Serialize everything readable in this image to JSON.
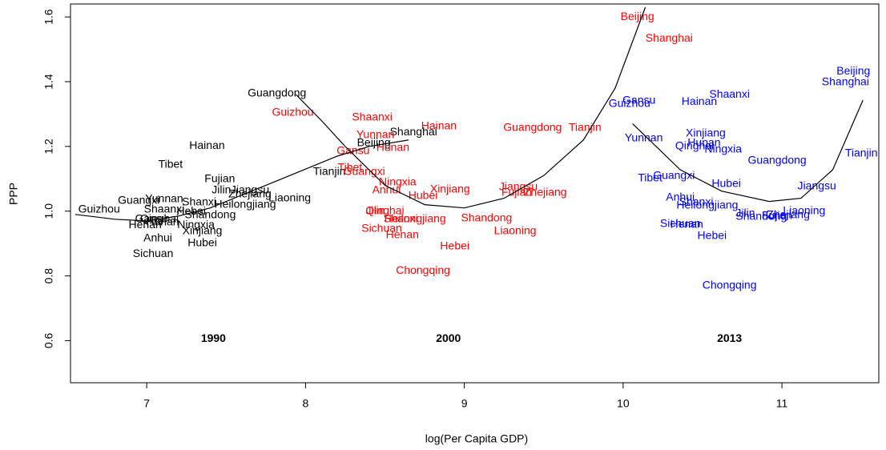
{
  "chart_data": {
    "type": "scatter",
    "xlabel": "log(Per Capita GDP)",
    "ylabel": "PPP",
    "xlim": [
      6.52,
      11.61
    ],
    "ylim": [
      0.47,
      1.64
    ],
    "xticks": [
      7,
      8,
      9,
      10,
      11
    ],
    "yticks": [
      0.6,
      0.8,
      {
        "value": 1.0,
        "label": "1.0"
      },
      1.2,
      1.4,
      1.6
    ],
    "series": [
      {
        "name": "1990",
        "color": "#000000",
        "labels": [
          "Guangdong",
          "Hainan",
          "Tibet",
          "Fujian",
          "Jiangsu",
          "Jilin",
          "Zhejiang",
          "Liaoning",
          "Heilongjiang",
          "Yunnan",
          "Guangxi",
          "Shanxi",
          "Shaanxi",
          "Hebei",
          "Shandong",
          "Guizhou",
          "Gansu",
          "Qinghai",
          "Henan",
          "Hunan",
          "Ningxia",
          "Xinjiang",
          "Anhui",
          "Sichuan",
          "Hubei",
          "Tianjin",
          "Beijing",
          "Shanghai"
        ],
        "x": [
          7.82,
          7.38,
          7.15,
          7.46,
          7.65,
          7.47,
          7.65,
          7.9,
          7.62,
          7.11,
          6.95,
          7.33,
          7.11,
          7.28,
          7.4,
          6.7,
          7.03,
          7.08,
          6.99,
          7.1,
          7.31,
          7.35,
          7.07,
          7.04,
          7.35,
          8.15,
          8.43,
          8.68
        ],
        "values": [
          1.363,
          1.202,
          1.143,
          1.099,
          1.064,
          1.064,
          1.052,
          1.04,
          1.02,
          1.037,
          1.032,
          1.027,
          1.005,
          0.998,
          0.988,
          1.005,
          0.975,
          0.975,
          0.956,
          0.965,
          0.956,
          0.938,
          0.916,
          0.867,
          0.901,
          1.121,
          1.21,
          1.244
        ]
      },
      {
        "name": "2000",
        "color": "#ff0000",
        "labels": [
          "Beijing",
          "Shanghai",
          "Guizhou",
          "Shaanxi",
          "Hainan",
          "Yunnan",
          "Hunan",
          "Gansu",
          "Tibet",
          "Guangxi",
          "Ningxia",
          "Anhui",
          "Xinjiang",
          "Hubei",
          "Guangdong",
          "Tianjin",
          "Jiangsu",
          "Fujian",
          "Zhejiang",
          "Jilin",
          "Qinghai",
          "Heilongjiang",
          "Shandong",
          "Shanxi",
          "Sichuan",
          "Henan",
          "Liaoning",
          "Hebei",
          "Chongqing"
        ],
        "x": [
          10.09,
          10.29,
          7.92,
          8.42,
          8.84,
          8.44,
          8.55,
          8.3,
          8.28,
          8.37,
          8.58,
          8.51,
          8.91,
          8.74,
          9.43,
          9.76,
          9.34,
          9.33,
          9.51,
          8.44,
          8.5,
          8.69,
          9.14,
          8.6,
          8.48,
          8.61,
          9.32,
          8.94,
          8.74
        ],
        "values": [
          1.6,
          1.533,
          1.304,
          1.289,
          1.262,
          1.235,
          1.195,
          1.185,
          1.133,
          1.121,
          1.089,
          1.064,
          1.067,
          1.047,
          1.257,
          1.257,
          1.074,
          1.057,
          1.057,
          1.0,
          1.0,
          0.975,
          0.978,
          0.975,
          0.946,
          0.926,
          0.938,
          0.891,
          0.815
        ]
      },
      {
        "name": "2013",
        "color": "#0000ff",
        "labels": [
          "Beijing",
          "Shanghai",
          "Tianjin",
          "Shaanxi",
          "Hainan",
          "Gansu",
          "Guizhou",
          "Yunnan",
          "Xinjiang",
          "Hunan",
          "Qinghai",
          "Ningxia",
          "Guangdong",
          "Guangxi",
          "Tibet",
          "Hubei",
          "Jiangsu",
          "Anhui",
          "Shanxi",
          "Heilongjiang",
          "Jilin",
          "Shandong",
          "Fujian",
          "Zhejiang",
          "Liaoning",
          "Sichuan",
          "Henan",
          "Hebei",
          "Chongqing"
        ],
        "x": [
          11.45,
          11.4,
          11.5,
          10.67,
          10.48,
          10.1,
          10.04,
          10.13,
          10.52,
          10.51,
          10.45,
          10.63,
          10.97,
          10.32,
          10.17,
          10.65,
          11.22,
          10.36,
          10.46,
          10.53,
          10.77,
          10.87,
          10.97,
          11.04,
          11.14,
          10.36,
          10.4,
          10.56,
          10.67
        ],
        "values": [
          1.432,
          1.398,
          1.178,
          1.36,
          1.338,
          1.341,
          1.331,
          1.225,
          1.24,
          1.21,
          1.2,
          1.19,
          1.156,
          1.109,
          1.101,
          1.084,
          1.077,
          1.042,
          1.027,
          1.017,
          0.993,
          0.983,
          0.985,
          0.988,
          1.0,
          0.96,
          0.958,
          0.923,
          0.77
        ]
      }
    ],
    "curves": [
      {
        "color": "#000000",
        "x": [
          6.55,
          6.8,
          7.0,
          7.2,
          7.4,
          7.6,
          7.8,
          8.0,
          8.2,
          8.4,
          8.65
        ],
        "values": [
          0.99,
          0.975,
          0.97,
          0.985,
          1.01,
          1.05,
          1.09,
          1.13,
          1.17,
          1.2,
          1.22
        ]
      },
      {
        "color": "#000000",
        "x": [
          7.94,
          8.1,
          8.25,
          8.5,
          8.75,
          9.0,
          9.25,
          9.5,
          9.75,
          9.95,
          10.14
        ],
        "values": [
          1.36,
          1.28,
          1.2,
          1.08,
          1.02,
          1.01,
          1.04,
          1.11,
          1.22,
          1.38,
          1.63
        ]
      },
      {
        "color": "#000000",
        "x": [
          10.06,
          10.36,
          10.62,
          10.92,
          11.12,
          11.32,
          11.51
        ],
        "values": [
          1.27,
          1.128,
          1.062,
          1.03,
          1.04,
          1.128,
          1.343
        ]
      }
    ],
    "annotations": [
      {
        "text": "1990",
        "x": 7.42,
        "y": 0.605
      },
      {
        "text": "2000",
        "x": 8.9,
        "y": 0.605
      },
      {
        "text": "2013",
        "x": 10.67,
        "y": 0.605
      }
    ]
  }
}
